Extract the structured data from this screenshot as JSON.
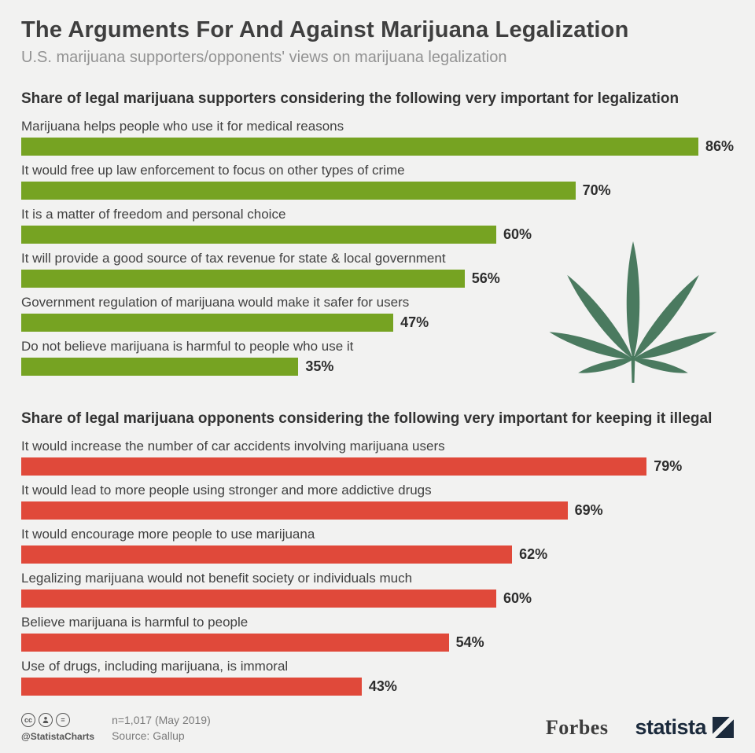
{
  "page": {
    "title": "The Arguments For And Against Marijuana Legalization",
    "subtitle": "U.S. marijuana supporters/opponents' views on marijuana legalization"
  },
  "colors": {
    "supporters_bar": "#76a322",
    "opponents_bar": "#e0493a",
    "leaf": "#4a7a5f",
    "background": "#f2f2f1"
  },
  "chart_data": [
    {
      "type": "bar",
      "orientation": "horizontal",
      "title": "Share of legal marijuana supporters considering the following very important for legalization",
      "unit": "%",
      "xlim": [
        0,
        90
      ],
      "color": "#76a322",
      "categories": [
        "Marijuana helps people who use it for medical reasons",
        "It would free up law enforcement to focus on other types of crime",
        "It is a matter of freedom and personal choice",
        "It will provide a good source of tax revenue for state & local government",
        "Government regulation of marijuana would make it safer for users",
        "Do not believe marijuana is harmful to people who use it"
      ],
      "values": [
        86,
        70,
        60,
        56,
        47,
        35
      ],
      "rows": [
        {
          "label": "Marijuana helps people who use it for medical reasons",
          "value": 86,
          "value_label": "86%"
        },
        {
          "label": "It would free up law enforcement to focus on other types of crime",
          "value": 70,
          "value_label": "70%"
        },
        {
          "label": "It is a matter of freedom and personal choice",
          "value": 60,
          "value_label": "60%"
        },
        {
          "label": "It will provide a good source of tax revenue for state & local government",
          "value": 56,
          "value_label": "56%"
        },
        {
          "label": "Government regulation of marijuana would make it safer for users",
          "value": 47,
          "value_label": "47%"
        },
        {
          "label": "Do not believe marijuana is harmful to people who use it",
          "value": 35,
          "value_label": "35%"
        }
      ]
    },
    {
      "type": "bar",
      "orientation": "horizontal",
      "title": "Share of legal marijuana opponents considering the following very important for keeping it illegal",
      "unit": "%",
      "xlim": [
        0,
        90
      ],
      "color": "#e0493a",
      "categories": [
        "It would increase the number of car accidents involving marijuana users",
        "It would lead to more people using stronger and more addictive drugs",
        "It would encourage more people to use marijuana",
        "Legalizing marijuana would not benefit society or individuals much",
        "Believe marijuana is harmful to people",
        "Use of drugs, including marijuana, is immoral"
      ],
      "values": [
        79,
        69,
        62,
        60,
        54,
        43
      ],
      "rows": [
        {
          "label": "It would increase the number of car accidents involving marijuana users",
          "value": 79,
          "value_label": "79%"
        },
        {
          "label": "It would lead to more people using stronger and more addictive drugs",
          "value": 69,
          "value_label": "69%"
        },
        {
          "label": "It would encourage more people to use marijuana",
          "value": 62,
          "value_label": "62%"
        },
        {
          "label": "Legalizing marijuana would not benefit society or individuals much",
          "value": 60,
          "value_label": "60%"
        },
        {
          "label": "Believe marijuana is harmful to people",
          "value": 54,
          "value_label": "54%"
        },
        {
          "label": "Use of drugs, including marijuana, is immoral",
          "value": 43,
          "value_label": "43%"
        }
      ]
    }
  ],
  "footer": {
    "handle": "@StatistaCharts",
    "cc_label": "cc",
    "nd_label": "=",
    "sample": "n=1,017 (May 2019)",
    "source": "Source: Gallup",
    "brands": [
      "Forbes",
      "statista"
    ]
  }
}
